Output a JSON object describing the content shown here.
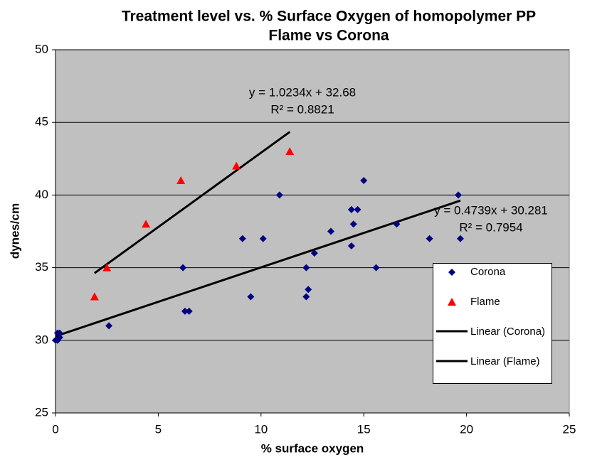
{
  "chart_data": {
    "type": "scatter",
    "title": "Treatment level vs. % Surface Oxygen of homopolymer PP",
    "subtitle": "Flame vs Corona",
    "xlabel": "% surface oxygen",
    "ylabel": "dynes/cm",
    "xlim": [
      0,
      25
    ],
    "xticks": [
      0,
      5,
      10,
      15,
      20,
      25
    ],
    "ylim": [
      25,
      50
    ],
    "yticks": [
      25,
      30,
      35,
      40,
      45,
      50
    ],
    "grid": true,
    "legend": "right",
    "series": [
      {
        "name": "Corona",
        "color": "#000080",
        "marker": "diamond",
        "x": [
          0,
          0.1,
          0.2,
          0.1,
          0.2,
          2.6,
          6.2,
          6.3,
          6.5,
          9.1,
          9.5,
          10.1,
          10.9,
          12.2,
          12.3,
          12.2,
          12.6,
          13.4,
          14.4,
          14.7,
          14.5,
          14.4,
          15,
          15.6,
          16.6,
          18.2,
          19.6,
          19.7
        ],
        "values": [
          30,
          30.5,
          30.5,
          30,
          30.2,
          31,
          35,
          32,
          32,
          37,
          33,
          37,
          40,
          35,
          33.5,
          33,
          36,
          37.5,
          39,
          39,
          38,
          36.5,
          41,
          35,
          38,
          37,
          40,
          37
        ]
      },
      {
        "name": "Flame",
        "color": "#ff0000",
        "marker": "triangle",
        "x": [
          1.9,
          2.5,
          4.4,
          6.1,
          8.8,
          11.4
        ],
        "values": [
          33,
          35,
          38,
          41,
          42,
          43
        ]
      }
    ],
    "trendlines": [
      {
        "name": "Linear (Corona)",
        "series": 0,
        "color": "#000000",
        "slope": 0.4739,
        "intercept": 30.281,
        "equation": "y = 0.4739x + 30.281",
        "r2": 0.7954,
        "r2_label": "R² = 0.7954"
      },
      {
        "name": "Linear (Flame)",
        "series": 1,
        "color": "#000000",
        "slope": 1.0234,
        "intercept": 32.68,
        "equation": "y = 1.0234x + 32.68",
        "r2": 0.8821,
        "r2_label": "R² = 0.8821"
      }
    ]
  }
}
